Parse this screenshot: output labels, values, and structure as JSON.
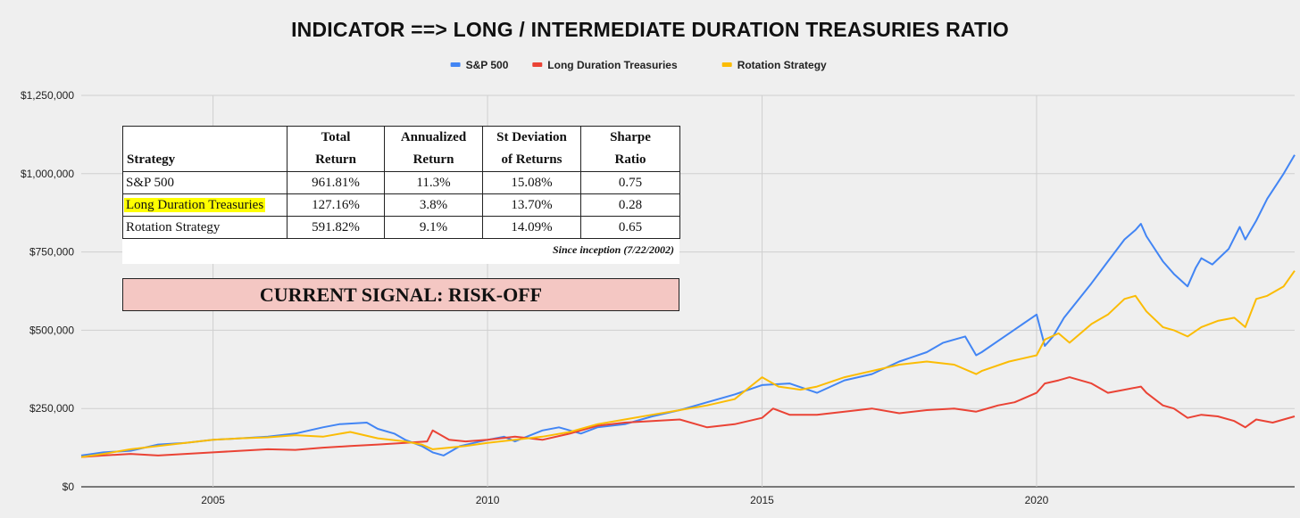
{
  "chart_data": {
    "type": "line",
    "title": "INDICATOR ==> LONG / INTERMEDIATE DURATION TREASURIES RATIO",
    "legend": {
      "placement": "top-center"
    },
    "x_axis": {
      "min": 2002.6,
      "max": 2024.7,
      "ticks": [
        2005,
        2010,
        2015,
        2020
      ]
    },
    "y_axis": {
      "min": 0,
      "max": 1250000,
      "ticks": [
        0,
        250000,
        500000,
        750000,
        1000000,
        1250000
      ],
      "tick_labels": [
        "$0",
        "$250,000",
        "$500,000",
        "$750,000",
        "$1,000,000",
        "$1,250,000"
      ]
    },
    "grid": true,
    "series": [
      {
        "name": "S&P 500",
        "color": "#4285f4",
        "x": [
          2002.6,
          2003.0,
          2003.5,
          2004.0,
          2004.5,
          2005.0,
          2005.5,
          2006.0,
          2006.5,
          2007.0,
          2007.3,
          2007.8,
          2008.0,
          2008.3,
          2008.5,
          2008.8,
          2009.0,
          2009.2,
          2009.5,
          2010.0,
          2010.3,
          2010.5,
          2011.0,
          2011.3,
          2011.7,
          2012.0,
          2012.5,
          2013.0,
          2013.5,
          2014.0,
          2014.5,
          2015.0,
          2015.5,
          2016.0,
          2016.5,
          2017.0,
          2017.5,
          2018.0,
          2018.3,
          2018.7,
          2018.9,
          2019.0,
          2019.5,
          2020.0,
          2020.15,
          2020.3,
          2020.5,
          2021.0,
          2021.3,
          2021.6,
          2021.8,
          2021.9,
          2022.0,
          2022.3,
          2022.5,
          2022.75,
          2022.9,
          2023.0,
          2023.2,
          2023.5,
          2023.7,
          2023.8,
          2024.0,
          2024.2,
          2024.5,
          2024.7
        ],
        "y": [
          100000,
          110000,
          115000,
          135000,
          140000,
          150000,
          155000,
          160000,
          170000,
          190000,
          200000,
          205000,
          185000,
          170000,
          150000,
          130000,
          110000,
          100000,
          130000,
          150000,
          160000,
          145000,
          180000,
          190000,
          170000,
          190000,
          200000,
          225000,
          245000,
          270000,
          295000,
          325000,
          330000,
          300000,
          340000,
          360000,
          400000,
          430000,
          460000,
          480000,
          420000,
          430000,
          490000,
          550000,
          450000,
          480000,
          540000,
          650000,
          720000,
          790000,
          820000,
          840000,
          800000,
          720000,
          680000,
          640000,
          700000,
          730000,
          710000,
          760000,
          830000,
          790000,
          850000,
          920000,
          1000000,
          1060000
        ]
      },
      {
        "name": "Long Duration Treasuries",
        "color": "#ea4335",
        "x": [
          2002.6,
          2003.0,
          2003.5,
          2004.0,
          2004.5,
          2005.0,
          2005.5,
          2006.0,
          2006.5,
          2007.0,
          2007.5,
          2008.0,
          2008.5,
          2008.9,
          2009.0,
          2009.3,
          2009.6,
          2010.0,
          2010.5,
          2011.0,
          2011.5,
          2011.7,
          2012.0,
          2012.5,
          2013.0,
          2013.5,
          2014.0,
          2014.5,
          2015.0,
          2015.2,
          2015.5,
          2016.0,
          2016.5,
          2017.0,
          2017.5,
          2018.0,
          2018.5,
          2018.9,
          2019.0,
          2019.3,
          2019.6,
          2020.0,
          2020.15,
          2020.4,
          2020.6,
          2021.0,
          2021.3,
          2021.6,
          2021.9,
          2022.0,
          2022.3,
          2022.5,
          2022.75,
          2023.0,
          2023.3,
          2023.6,
          2023.8,
          2024.0,
          2024.3,
          2024.7
        ],
        "y": [
          95000,
          100000,
          105000,
          100000,
          105000,
          110000,
          115000,
          120000,
          118000,
          125000,
          130000,
          135000,
          140000,
          145000,
          180000,
          150000,
          145000,
          150000,
          160000,
          150000,
          170000,
          180000,
          195000,
          205000,
          210000,
          215000,
          190000,
          200000,
          220000,
          250000,
          230000,
          230000,
          240000,
          250000,
          235000,
          245000,
          250000,
          240000,
          245000,
          260000,
          270000,
          300000,
          330000,
          340000,
          350000,
          330000,
          300000,
          310000,
          320000,
          300000,
          260000,
          250000,
          220000,
          230000,
          225000,
          210000,
          190000,
          215000,
          205000,
          225000
        ]
      },
      {
        "name": "Rotation Strategy",
        "color": "#fbbc04",
        "x": [
          2002.6,
          2003.0,
          2003.5,
          2004.0,
          2004.5,
          2005.0,
          2005.5,
          2006.0,
          2006.5,
          2007.0,
          2007.5,
          2008.0,
          2008.5,
          2008.8,
          2009.0,
          2009.3,
          2009.6,
          2010.0,
          2010.5,
          2011.0,
          2011.5,
          2011.7,
          2012.0,
          2012.5,
          2013.0,
          2013.5,
          2014.0,
          2014.5,
          2015.0,
          2015.3,
          2015.7,
          2016.0,
          2016.5,
          2017.0,
          2017.5,
          2018.0,
          2018.5,
          2018.9,
          2019.0,
          2019.5,
          2020.0,
          2020.15,
          2020.4,
          2020.6,
          2021.0,
          2021.3,
          2021.6,
          2021.8,
          2022.0,
          2022.3,
          2022.5,
          2022.75,
          2023.0,
          2023.3,
          2023.6,
          2023.8,
          2024.0,
          2024.2,
          2024.5,
          2024.7
        ],
        "y": [
          95000,
          105000,
          120000,
          130000,
          140000,
          150000,
          155000,
          158000,
          165000,
          160000,
          175000,
          155000,
          145000,
          135000,
          120000,
          125000,
          130000,
          140000,
          150000,
          160000,
          175000,
          185000,
          200000,
          215000,
          230000,
          245000,
          260000,
          280000,
          350000,
          320000,
          310000,
          320000,
          350000,
          370000,
          390000,
          400000,
          390000,
          360000,
          370000,
          400000,
          420000,
          470000,
          490000,
          460000,
          520000,
          550000,
          600000,
          610000,
          560000,
          510000,
          500000,
          480000,
          510000,
          530000,
          540000,
          510000,
          600000,
          610000,
          640000,
          690000
        ]
      }
    ],
    "table": {
      "headers": [
        {
          "line1": "",
          "line2": "Strategy"
        },
        {
          "line1": "Total",
          "line2": "Return"
        },
        {
          "line1": "Annualized",
          "line2": "Return"
        },
        {
          "line1": "St Deviation",
          "line2": "of Returns"
        },
        {
          "line1": "Sharpe",
          "line2": "Ratio"
        }
      ],
      "rows": [
        {
          "strategy": "S&P 500",
          "total_return": "961.81%",
          "annualized_return": "11.3%",
          "st_deviation": "15.08%",
          "sharpe_ratio": "0.75",
          "highlight": false
        },
        {
          "strategy": "Long Duration Treasuries",
          "total_return": "127.16%",
          "annualized_return": "3.8%",
          "st_deviation": "13.70%",
          "sharpe_ratio": "0.28",
          "highlight": true,
          "highlight_color": "#ffff00"
        },
        {
          "strategy": "Rotation Strategy",
          "total_return": "591.82%",
          "annualized_return": "9.1%",
          "st_deviation": "14.09%",
          "sharpe_ratio": "0.65",
          "highlight": false
        }
      ],
      "note": "Since inception (7/22/2002)"
    },
    "signal": {
      "text": "CURRENT SIGNAL: RISK-OFF",
      "background": "#f4c7c3"
    }
  }
}
